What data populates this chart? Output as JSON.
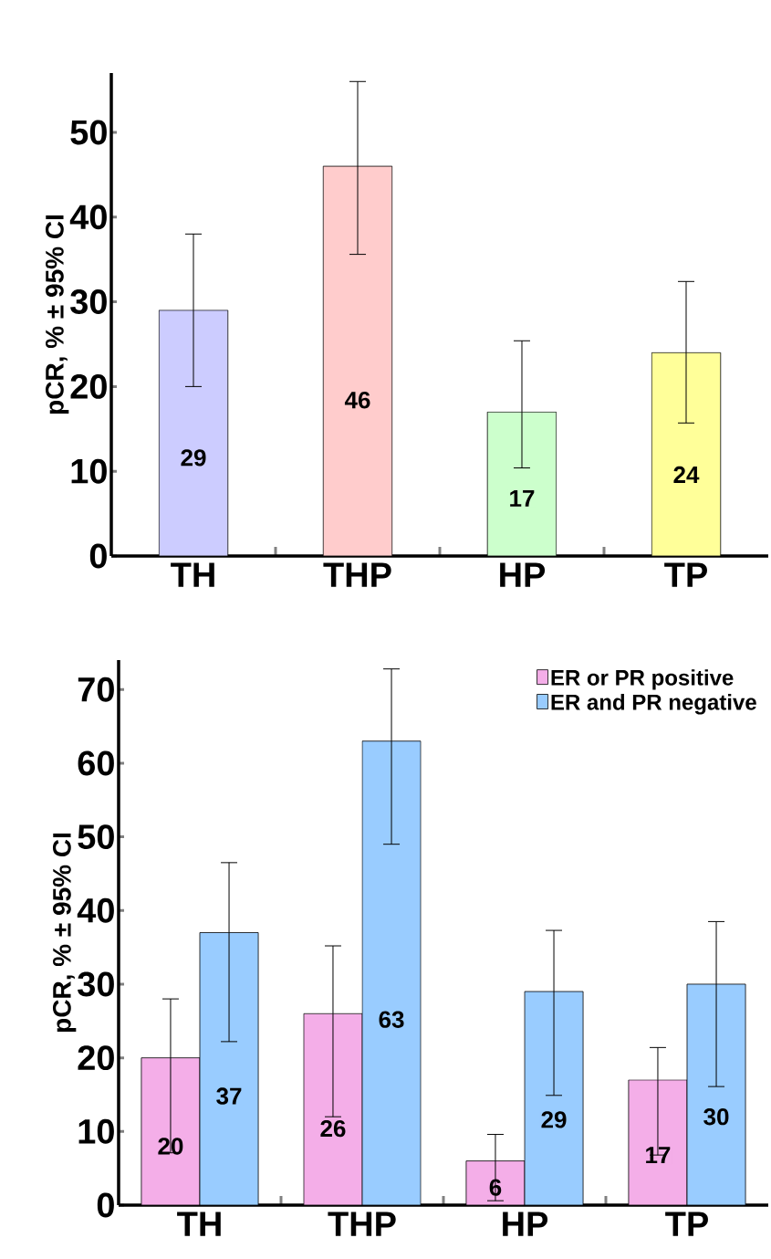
{
  "chart_data": [
    {
      "type": "bar",
      "ylabel": "pCR, % ± 95% CI",
      "categories": [
        "TH",
        "THP",
        "HP",
        "TP"
      ],
      "values": [
        29,
        46,
        17,
        24
      ],
      "colors": [
        "#ccccff",
        "#ffcccc",
        "#ccffcc",
        "#ffff99"
      ],
      "errors": [
        [
          20,
          38
        ],
        [
          35.6,
          56
        ],
        [
          10.4,
          25.4
        ],
        [
          15.7,
          32.4
        ]
      ],
      "value_labels": [
        "29",
        "46",
        "17",
        "24"
      ],
      "ylim": [
        0,
        57
      ],
      "yticks": [
        0,
        10,
        20,
        30,
        40,
        50
      ],
      "grid": false,
      "legend": false
    },
    {
      "type": "bar",
      "ylabel": "pCR, % ± 95% CI",
      "categories": [
        "TH",
        "THP",
        "HP",
        "TP"
      ],
      "series": [
        {
          "name": "ER or PR positive",
          "color": "#f4aee8",
          "values": [
            20,
            26,
            6,
            17
          ],
          "errors": [
            [
              7.1,
              28
            ],
            [
              12,
              35.2
            ],
            [
              0.6,
              9.6
            ],
            [
              6.8,
              21.4
            ]
          ],
          "value_labels": [
            "20",
            "26",
            "6",
            "17"
          ]
        },
        {
          "name": "ER and PR negative",
          "color": "#99ccff",
          "values": [
            37,
            63,
            29,
            30
          ],
          "errors": [
            [
              22.2,
              46.5
            ],
            [
              49,
              72.8
            ],
            [
              14.9,
              37.3
            ],
            [
              16.1,
              38.5
            ]
          ],
          "value_labels": [
            "37",
            "63",
            "29",
            "30"
          ]
        }
      ],
      "ylim": [
        0,
        74
      ],
      "yticks": [
        0,
        10,
        20,
        30,
        40,
        50,
        60,
        70
      ],
      "grid": false,
      "legend": "top right"
    }
  ]
}
